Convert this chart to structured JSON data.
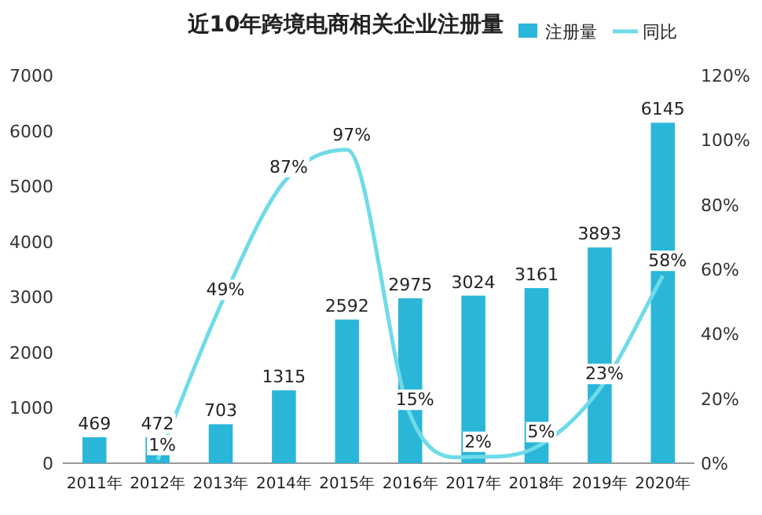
{
  "chart_data": {
    "type": "bar",
    "title": "近10年跨境电商相关企业注册量",
    "categories": [
      "2011年",
      "2012年",
      "2013年",
      "2014年",
      "2015年",
      "2016年",
      "2017年",
      "2018年",
      "2019年",
      "2020年"
    ],
    "series": [
      {
        "name": "注册量",
        "color": "#29b6d9",
        "values": [
          469,
          472,
          703,
          1315,
          2592,
          2975,
          3024,
          3161,
          3893,
          6145
        ],
        "value_labels": [
          "469",
          "472",
          "703",
          "1315",
          "2592",
          "2975",
          "3024",
          "3161",
          "3893",
          "6145"
        ]
      },
      {
        "name": "同比",
        "type": "line",
        "axis": "y2",
        "color": "#6fdbe8",
        "values": [
          null,
          1,
          49,
          87,
          97,
          15,
          2,
          5,
          23,
          58
        ],
        "value_labels": [
          null,
          "1%",
          "49%",
          "87%",
          "97%",
          "15%",
          "2%",
          "5%",
          "23%",
          "58%"
        ]
      }
    ],
    "ylim": [
      0,
      7000
    ],
    "yticks": [
      0,
      1000,
      2000,
      3000,
      4000,
      5000,
      6000,
      7000
    ],
    "y2lim": [
      0,
      120
    ],
    "y2ticks": [
      {
        "value": 0,
        "label": "0%"
      },
      {
        "value": 20,
        "label": "20%"
      },
      {
        "value": 40,
        "label": "40%"
      },
      {
        "value": 60,
        "label": "60%"
      },
      {
        "value": 80,
        "label": "80%"
      },
      {
        "value": 100,
        "label": "100%"
      },
      {
        "value": 120,
        "label": "120%"
      }
    ],
    "legend": "top right",
    "grid": false,
    "marker": "none"
  }
}
